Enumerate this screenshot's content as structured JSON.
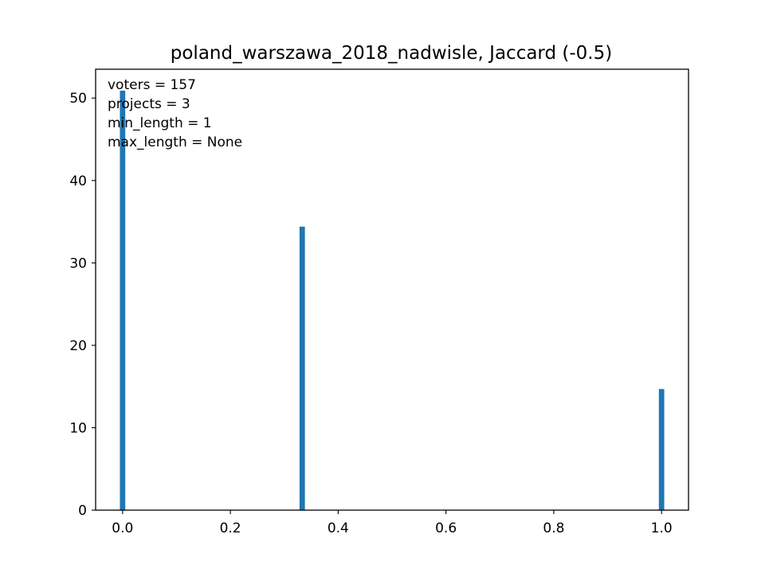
{
  "chart_data": {
    "type": "bar",
    "title": "poland_warszawa_2018_nadwisle, Jaccard (-0.5)",
    "xlabel": "",
    "ylabel": "",
    "x": [
      0.0,
      0.3333,
      1.0
    ],
    "values": [
      50.9,
      34.4,
      14.7
    ],
    "bar_width": 0.01,
    "xlim": [
      -0.05,
      1.05
    ],
    "ylim": [
      0,
      53.5
    ],
    "xticks": [
      0.0,
      0.2,
      0.4,
      0.6,
      0.8,
      1.0
    ],
    "xtick_labels": [
      "0.0",
      "0.2",
      "0.4",
      "0.6",
      "0.8",
      "1.0"
    ],
    "yticks": [
      0,
      10,
      20,
      30,
      40,
      50
    ],
    "ytick_labels": [
      "0",
      "10",
      "20",
      "30",
      "40",
      "50"
    ],
    "grid": false,
    "bar_color": "#1f77b4",
    "annotations": [
      "voters = 157",
      "projects = 3",
      "min_length = 1",
      "max_length = None"
    ]
  }
}
